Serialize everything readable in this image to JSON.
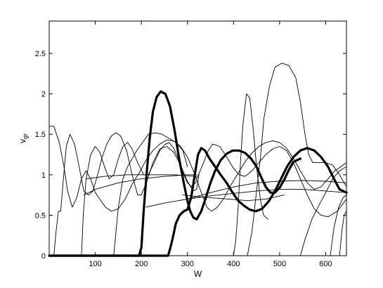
{
  "chart_data": {
    "type": "line",
    "xlabel": "W",
    "ylabel": "v",
    "ylabel_sub": "gr",
    "xlim": [
      0,
      645
    ],
    "ylim": [
      0,
      2.9
    ],
    "xticks": [
      100,
      200,
      300,
      400,
      500,
      600
    ],
    "yticks": [
      0,
      0.5,
      1,
      1.5,
      2,
      2.5
    ],
    "xtick_labels": [
      "100",
      "200",
      "300",
      "400",
      "500",
      "600"
    ],
    "ytick_labels": [
      "0",
      "0.5",
      "1",
      "1.5",
      "2",
      "2.5"
    ],
    "grid": false,
    "series": [
      {
        "weight": "thin",
        "points": [
          [
            0,
            1.6
          ],
          [
            10,
            1.6
          ],
          [
            22,
            1.4
          ],
          [
            32,
            1.1
          ],
          [
            40,
            0.8
          ],
          [
            50,
            0.6
          ],
          [
            60,
            0.72
          ],
          [
            70,
            0.95
          ],
          [
            80,
            1.05
          ],
          [
            90,
            0.95
          ],
          [
            100,
            0.78
          ],
          [
            112,
            0.68
          ],
          [
            122,
            0.6
          ],
          [
            135,
            0.55
          ],
          [
            150,
            0.58
          ],
          [
            165,
            0.7
          ],
          [
            180,
            0.88
          ],
          [
            195,
            1.02
          ],
          [
            210,
            1.18
          ],
          [
            225,
            1.3
          ],
          [
            240,
            1.38
          ],
          [
            255,
            1.43
          ],
          [
            270,
            1.42
          ],
          [
            285,
            1.35
          ],
          [
            300,
            1.22
          ],
          [
            315,
            1.02
          ],
          [
            330,
            0.78
          ],
          [
            342,
            0.6
          ],
          [
            352,
            0.55
          ],
          [
            365,
            0.6
          ],
          [
            380,
            0.72
          ],
          [
            395,
            0.88
          ],
          [
            410,
            1.02
          ],
          [
            425,
            1.16
          ],
          [
            440,
            1.27
          ],
          [
            455,
            1.35
          ],
          [
            470,
            1.4
          ],
          [
            485,
            1.42
          ],
          [
            500,
            1.4
          ],
          [
            515,
            1.33
          ],
          [
            530,
            1.2
          ],
          [
            545,
            1.05
          ],
          [
            560,
            0.9
          ],
          [
            575,
            0.82
          ],
          [
            590,
            0.85
          ],
          [
            605,
            0.95
          ],
          [
            620,
            1.05
          ],
          [
            645,
            1.15
          ]
        ]
      },
      {
        "weight": "thin",
        "points": [
          [
            10,
            0
          ],
          [
            15,
            0.3
          ],
          [
            20,
            0.55
          ],
          [
            25,
            0.55
          ],
          [
            30,
            0.9
          ],
          [
            37,
            1.35
          ],
          [
            45,
            1.5
          ],
          [
            55,
            1.38
          ],
          [
            65,
            1.1
          ],
          [
            75,
            0.8
          ],
          [
            85,
            0.75
          ],
          [
            95,
            0.8
          ],
          [
            105,
            1.0
          ],
          [
            115,
            1.22
          ],
          [
            125,
            1.38
          ],
          [
            135,
            1.48
          ],
          [
            145,
            1.52
          ],
          [
            155,
            1.48
          ],
          [
            168,
            1.3
          ],
          [
            180,
            1.0
          ],
          [
            192,
            0.75
          ],
          [
            200,
            0.75
          ],
          [
            212,
            0.92
          ],
          [
            225,
            1.15
          ],
          [
            240,
            1.32
          ],
          [
            255,
            1.35
          ],
          [
            270,
            1.28
          ],
          [
            285,
            1.12
          ],
          [
            300,
            0.92
          ],
          [
            312,
            0.8
          ],
          [
            320,
            0.82
          ],
          [
            325,
            1.0
          ]
        ]
      },
      {
        "weight": "thin",
        "points": [
          [
            70,
            0
          ],
          [
            74,
            0.5
          ],
          [
            80,
            0.95
          ],
          [
            90,
            1.25
          ],
          [
            100,
            1.35
          ],
          [
            110,
            1.28
          ],
          [
            120,
            1.1
          ],
          [
            130,
            0.95
          ],
          [
            140,
            1.0
          ],
          [
            150,
            1.2
          ],
          [
            160,
            1.35
          ],
          [
            170,
            1.4
          ],
          [
            180,
            1.32
          ],
          [
            192,
            1.15
          ],
          [
            205,
            1.0
          ],
          [
            215,
            1.0
          ],
          [
            228,
            1.15
          ],
          [
            240,
            1.3
          ],
          [
            250,
            1.37
          ],
          [
            260,
            1.4
          ],
          [
            270,
            1.33
          ],
          [
            280,
            1.2
          ],
          [
            290,
            1.03
          ],
          [
            300,
            0.9
          ],
          [
            310,
            0.85
          ],
          [
            320,
            0.92
          ]
        ]
      },
      {
        "weight": "thin",
        "points": [
          [
            140,
            0
          ],
          [
            145,
            0.3
          ],
          [
            150,
            0.6
          ],
          [
            160,
            0.95
          ],
          [
            170,
            1.1
          ],
          [
            180,
            1.2
          ],
          [
            190,
            1.3
          ],
          [
            200,
            1.38
          ],
          [
            215,
            1.5
          ],
          [
            230,
            1.52
          ],
          [
            245,
            1.5
          ],
          [
            260,
            1.45
          ],
          [
            275,
            1.4
          ],
          [
            290,
            1.3
          ],
          [
            300,
            1.1
          ]
        ]
      },
      {
        "weight": "thin",
        "points": [
          [
            75,
            0.75
          ],
          [
            100,
            0.82
          ],
          [
            150,
            0.9
          ],
          [
            200,
            0.95
          ],
          [
            250,
            0.98
          ],
          [
            300,
            1.0
          ],
          [
            320,
            1.0
          ]
        ]
      },
      {
        "weight": "thin",
        "points": [
          [
            80,
            0.95
          ],
          [
            120,
            0.98
          ],
          [
            170,
            1.0
          ],
          [
            220,
            1.0
          ],
          [
            270,
            1.0
          ],
          [
            320,
            0.98
          ]
        ]
      },
      {
        "weight": "thin",
        "points": [
          [
            210,
            0.6
          ],
          [
            250,
            0.65
          ],
          [
            300,
            0.7
          ],
          [
            350,
            0.74
          ],
          [
            400,
            0.77
          ],
          [
            450,
            0.8
          ],
          [
            500,
            0.82
          ],
          [
            550,
            0.82
          ],
          [
            600,
            0.8
          ],
          [
            645,
            0.78
          ]
        ]
      },
      {
        "weight": "thin",
        "points": [
          [
            290,
            0.75
          ],
          [
            340,
            0.72
          ],
          [
            390,
            0.7
          ],
          [
            430,
            0.68
          ],
          [
            470,
            0.7
          ],
          [
            510,
            0.75
          ]
        ]
      },
      {
        "weight": "thin",
        "points": [
          [
            300,
            0.7
          ],
          [
            350,
            0.78
          ],
          [
            400,
            0.85
          ],
          [
            450,
            0.9
          ],
          [
            500,
            0.92
          ],
          [
            550,
            0.93
          ],
          [
            600,
            0.92
          ],
          [
            645,
            0.9
          ]
        ]
      },
      {
        "weight": "thin",
        "points": [
          [
            320,
            0.95
          ],
          [
            335,
            1.15
          ],
          [
            345,
            1.3
          ],
          [
            355,
            1.38
          ],
          [
            370,
            1.35
          ],
          [
            385,
            1.22
          ],
          [
            400,
            1.08
          ],
          [
            412,
            1.0
          ],
          [
            425,
            0.98
          ],
          [
            440,
            1.05
          ],
          [
            455,
            1.15
          ],
          [
            470,
            1.25
          ],
          [
            485,
            1.32
          ],
          [
            500,
            1.35
          ],
          [
            515,
            1.3
          ],
          [
            530,
            1.15
          ],
          [
            545,
            0.95
          ],
          [
            560,
            0.75
          ],
          [
            575,
            0.58
          ],
          [
            590,
            0.5
          ],
          [
            605,
            0.48
          ],
          [
            625,
            0.55
          ],
          [
            645,
            0.7
          ]
        ]
      },
      {
        "weight": "thin",
        "points": [
          [
            400,
            0
          ],
          [
            405,
            0.2
          ],
          [
            410,
            0.6
          ],
          [
            415,
            1.15
          ],
          [
            420,
            1.6
          ],
          [
            428,
            2.0
          ],
          [
            435,
            1.95
          ],
          [
            442,
            1.6
          ],
          [
            450,
            1.1
          ],
          [
            458,
            0.7
          ],
          [
            465,
            0.5
          ],
          [
            475,
            0.45
          ]
        ]
      },
      {
        "weight": "thin",
        "points": [
          [
            430,
            0
          ],
          [
            440,
            0.3
          ],
          [
            450,
            0.8
          ],
          [
            458,
            1.2
          ],
          [
            466,
            1.7
          ],
          [
            478,
            2.1
          ],
          [
            490,
            2.33
          ],
          [
            505,
            2.38
          ],
          [
            520,
            2.35
          ],
          [
            535,
            2.2
          ],
          [
            545,
            1.9
          ],
          [
            555,
            1.5
          ],
          [
            563,
            1.25
          ],
          [
            572,
            1.15
          ],
          [
            585,
            1.15
          ],
          [
            600,
            1.15
          ],
          [
            615,
            1.12
          ],
          [
            630,
            1.0
          ],
          [
            645,
            0.85
          ]
        ]
      },
      {
        "weight": "thin",
        "points": [
          [
            545,
            0
          ],
          [
            555,
            0.2
          ],
          [
            570,
            0.45
          ],
          [
            585,
            0.62
          ],
          [
            600,
            0.78
          ],
          [
            615,
            0.95
          ],
          [
            630,
            1.05
          ],
          [
            645,
            1.1
          ]
        ]
      },
      {
        "weight": "thin",
        "points": [
          [
            610,
            0
          ],
          [
            618,
            0.35
          ],
          [
            628,
            0.6
          ],
          [
            638,
            0.72
          ],
          [
            645,
            0.75
          ]
        ]
      },
      {
        "weight": "thin",
        "points": [
          [
            630,
            0
          ],
          [
            635,
            0.3
          ],
          [
            640,
            0.5
          ],
          [
            645,
            0.55
          ]
        ]
      },
      {
        "weight": "thick",
        "points": [
          [
            0,
            0
          ],
          [
            195,
            0
          ],
          [
            200,
            0.1
          ],
          [
            205,
            0.55
          ],
          [
            212,
            1.05
          ],
          [
            218,
            1.45
          ],
          [
            225,
            1.78
          ],
          [
            233,
            1.96
          ],
          [
            242,
            2.03
          ],
          [
            252,
            2.0
          ],
          [
            262,
            1.85
          ],
          [
            272,
            1.55
          ],
          [
            282,
            1.2
          ],
          [
            292,
            0.9
          ],
          [
            300,
            0.68
          ],
          [
            306,
            0.55
          ],
          [
            313,
            0.47
          ],
          [
            320,
            0.45
          ],
          [
            330,
            0.55
          ],
          [
            340,
            0.72
          ],
          [
            350,
            0.9
          ],
          [
            360,
            1.05
          ],
          [
            372,
            1.18
          ],
          [
            385,
            1.26
          ],
          [
            398,
            1.3
          ],
          [
            412,
            1.3
          ],
          [
            425,
            1.27
          ],
          [
            438,
            1.2
          ],
          [
            450,
            1.1
          ],
          [
            460,
            0.97
          ],
          [
            470,
            0.85
          ],
          [
            480,
            0.78
          ],
          [
            490,
            0.78
          ],
          [
            500,
            0.84
          ],
          [
            510,
            0.94
          ],
          [
            520,
            1.06
          ],
          [
            530,
            1.16
          ],
          [
            545,
            1.2
          ]
        ]
      },
      {
        "weight": "thick",
        "points": [
          [
            0,
            0
          ],
          [
            258,
            0
          ],
          [
            263,
            0.1
          ],
          [
            268,
            0.22
          ],
          [
            275,
            0.4
          ],
          [
            283,
            0.5
          ],
          [
            292,
            0.55
          ],
          [
            300,
            0.57
          ],
          [
            308,
            0.72
          ],
          [
            316,
            1.0
          ],
          [
            323,
            1.25
          ],
          [
            330,
            1.33
          ],
          [
            338,
            1.3
          ],
          [
            348,
            1.2
          ],
          [
            360,
            1.1
          ],
          [
            372,
            1.0
          ],
          [
            385,
            0.9
          ],
          [
            398,
            0.78
          ],
          [
            410,
            0.68
          ],
          [
            422,
            0.62
          ],
          [
            435,
            0.57
          ],
          [
            448,
            0.55
          ],
          [
            462,
            0.58
          ],
          [
            476,
            0.67
          ],
          [
            490,
            0.8
          ],
          [
            503,
            0.95
          ],
          [
            516,
            1.1
          ],
          [
            530,
            1.22
          ],
          [
            545,
            1.3
          ],
          [
            560,
            1.33
          ],
          [
            575,
            1.3
          ],
          [
            590,
            1.22
          ],
          [
            605,
            1.1
          ],
          [
            618,
            0.95
          ],
          [
            630,
            0.82
          ],
          [
            645,
            0.78
          ]
        ]
      }
    ]
  }
}
